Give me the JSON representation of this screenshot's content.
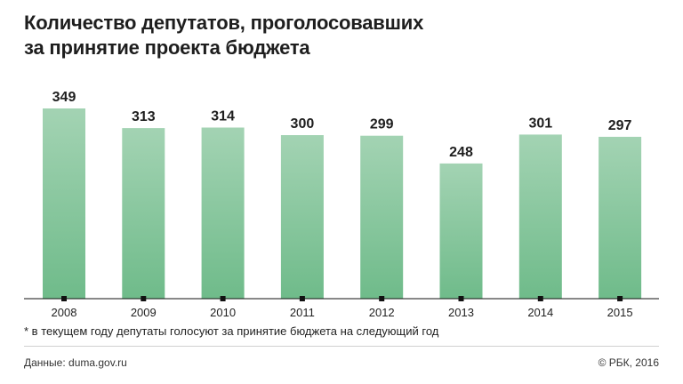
{
  "title_line1": "Количество депутатов, проголосовавших",
  "title_line2": "за принятие проекта бюджета",
  "footnote": "* в текущем году депутаты голосуют за принятие бюджета на следующий год",
  "source": "Данные: duma.gov.ru",
  "copyright": "© РБК, 2016",
  "colors": {
    "bar_top": "#a3d3b3",
    "bar_bottom": "#6fbb8a",
    "axis": "#111111"
  },
  "chart_data": {
    "type": "bar",
    "categories": [
      "2008",
      "2009",
      "2010",
      "2011",
      "2012",
      "2013",
      "2014",
      "2015"
    ],
    "values": [
      349,
      313,
      314,
      300,
      299,
      248,
      301,
      297
    ],
    "title": "Количество депутатов, проголосовавших за принятие проекта бюджета",
    "ylim": [
      0,
      349
    ]
  }
}
